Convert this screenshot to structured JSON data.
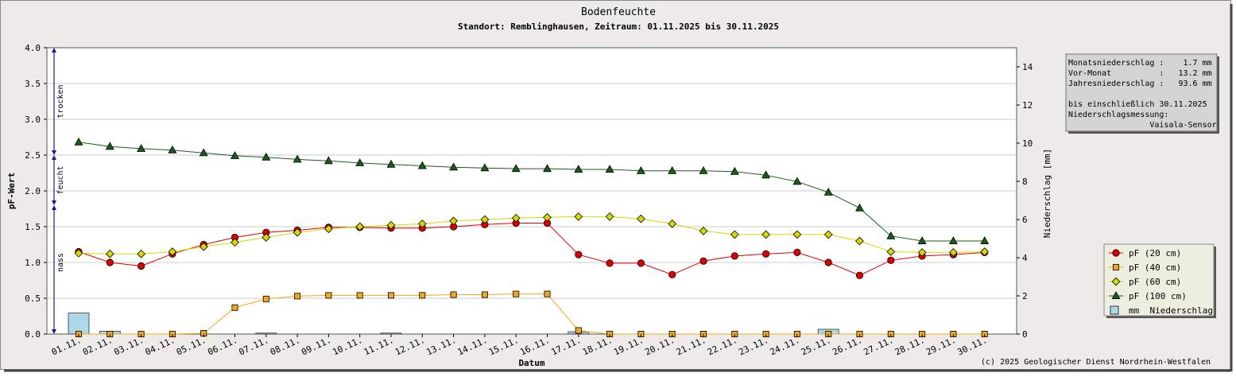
{
  "chart_data": {
    "type": "line",
    "title": "Bodenfeuchte",
    "subtitle": "Standort: Remblinghausen, Zeitraum: 01.11.2025 bis 30.11.2025",
    "xlabel": "Datum",
    "ylabel": "pF-Wert",
    "y2label": "Niederschlag [mm]",
    "ylim": [
      0,
      4
    ],
    "y2lim": [
      0,
      15
    ],
    "yticks": [
      "0.0",
      "0.5",
      "1.0",
      "1.5",
      "2.0",
      "2.5",
      "3.0",
      "3.5",
      "4.0"
    ],
    "y2ticks": [
      "0",
      "2",
      "4",
      "6",
      "8",
      "10",
      "12",
      "14"
    ],
    "categories": [
      "01.11.",
      "02.11.",
      "03.11.",
      "04.11.",
      "05.11.",
      "06.11.",
      "07.11.",
      "08.11.",
      "09.11.",
      "10.11.",
      "11.11.",
      "12.11.",
      "13.11.",
      "14.11.",
      "15.11.",
      "16.11.",
      "17.11.",
      "18.11.",
      "19.11.",
      "20.11.",
      "21.11.",
      "22.11.",
      "23.11.",
      "24.11.",
      "25.11.",
      "26.11.",
      "27.11.",
      "28.11.",
      "29.11.",
      "30.11."
    ],
    "zones": [
      {
        "label": "trocken",
        "from": 2.5,
        "to": 4.0
      },
      {
        "label": "feucht",
        "from": 1.8,
        "to": 2.5
      },
      {
        "label": "nass",
        "from": 0.0,
        "to": 1.8
      }
    ],
    "series": [
      {
        "name": "pF (20 cm)",
        "color": "#dd0000",
        "marker": "circle",
        "values": [
          1.15,
          1.0,
          0.95,
          1.12,
          1.25,
          1.35,
          1.42,
          1.45,
          1.49,
          1.49,
          1.48,
          1.48,
          1.5,
          1.53,
          1.55,
          1.55,
          1.11,
          0.99,
          0.99,
          0.83,
          1.02,
          1.09,
          1.12,
          1.14,
          1.0,
          0.82,
          1.03,
          1.09,
          1.11,
          1.14
        ]
      },
      {
        "name": "pF (40 cm)",
        "color": "#f0a820",
        "marker": "square",
        "values": [
          0.0,
          0.0,
          0.0,
          0.0,
          0.01,
          0.37,
          0.49,
          0.53,
          0.54,
          0.54,
          0.54,
          0.54,
          0.55,
          0.55,
          0.56,
          0.56,
          0.05,
          0.0,
          0.0,
          0.0,
          0.0,
          0.0,
          0.0,
          0.0,
          0.0,
          0.0,
          0.0,
          0.0,
          0.0,
          0.0
        ]
      },
      {
        "name": "pF (60 cm)",
        "color": "#d8d800",
        "marker": "diamond",
        "values": [
          1.13,
          1.12,
          1.12,
          1.15,
          1.22,
          1.28,
          1.35,
          1.42,
          1.47,
          1.5,
          1.52,
          1.54,
          1.58,
          1.6,
          1.62,
          1.63,
          1.64,
          1.64,
          1.61,
          1.54,
          1.44,
          1.39,
          1.39,
          1.39,
          1.39,
          1.3,
          1.15,
          1.14,
          1.14,
          1.15
        ]
      },
      {
        "name": "pF (100 cm)",
        "color": "#1a5c1a",
        "marker": "triangle",
        "values": [
          2.68,
          2.62,
          2.59,
          2.57,
          2.53,
          2.49,
          2.47,
          2.44,
          2.42,
          2.39,
          2.37,
          2.35,
          2.33,
          2.32,
          2.31,
          2.31,
          2.3,
          2.3,
          2.28,
          2.28,
          2.28,
          2.27,
          2.22,
          2.13,
          1.98,
          1.76,
          1.37,
          1.3,
          1.3,
          1.3
        ]
      }
    ],
    "precipitation": {
      "name": "mm  Niederschlag",
      "unit": "mm",
      "color": "#add8e6",
      "values": [
        1.1,
        0.15,
        0.0,
        0.0,
        0.0,
        0.0,
        0.05,
        0.0,
        0.0,
        0.0,
        0.05,
        0.0,
        0.0,
        0.0,
        0.0,
        0.0,
        0.12,
        0.0,
        0.0,
        0.0,
        0.0,
        0.0,
        0.0,
        0.0,
        0.25,
        0.0,
        0.0,
        0.0,
        0.0,
        0.0
      ]
    },
    "info_box": {
      "lines": [
        "Monatsniederschlag :    1.7 mm",
        "Vor-Monat          :   13.2 mm",
        "Jahresniederschlag :   93.6 mm",
        "",
        "bis einschließlich 30.11.2025",
        "Niederschlagsmessung:",
        "                 Vaisala-Sensor"
      ]
    },
    "copyright": "(c) 2025 Geologischer Dienst Nordrhein-Westfalen",
    "legend_placement": "bottom-right",
    "grid": true
  }
}
